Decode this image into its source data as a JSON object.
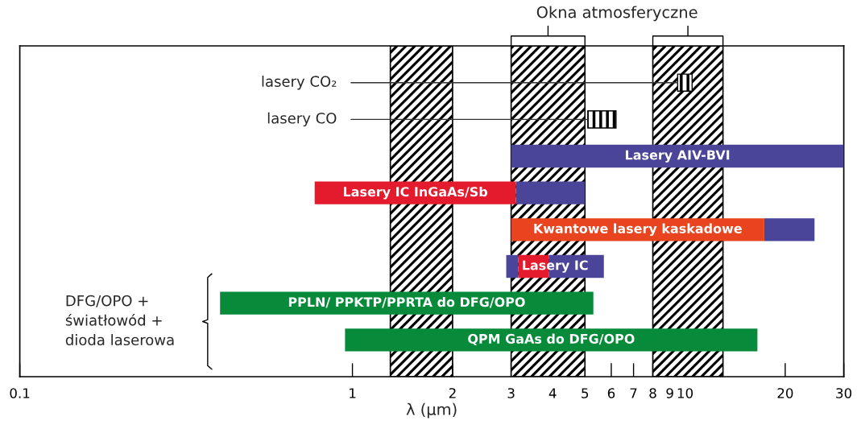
{
  "chart_data": {
    "type": "bar",
    "orientation": "horizontal",
    "xlabel": "λ (µm)",
    "log": "x",
    "grid": false,
    "legend": false,
    "categories": [
      null,
      null,
      null,
      null,
      null,
      null,
      null,
      null
    ],
    "xlim": [
      0.1,
      30
    ],
    "xticks": [
      0.1,
      1,
      2,
      3,
      4,
      5,
      6,
      7,
      8,
      9,
      10,
      20,
      30
    ],
    "series": [
      {
        "name": "lasery CO₂",
        "color": "#000000",
        "base": [
          9.5,
          null,
          null,
          null,
          null,
          null,
          null,
          null
        ],
        "values": [
          1.0,
          null,
          null,
          null,
          null,
          null,
          null,
          null
        ]
      },
      {
        "name": "lasery CO",
        "color": "#000000",
        "base": [
          null,
          5.1,
          null,
          null,
          null,
          null,
          null,
          null
        ],
        "values": [
          null,
          1.1,
          null,
          null,
          null,
          null,
          null,
          null
        ]
      },
      {
        "color": "#4a4598",
        "base": [
          null,
          null,
          3.0,
          3.1,
          17.3,
          2.9,
          null,
          null
        ],
        "values": [
          null,
          null,
          27.0,
          1.9,
          7.2,
          0.25,
          null,
          null
        ],
        "value_labels": [
          null,
          null,
          "Lasery AIV-BVI",
          null,
          null,
          null,
          null,
          null
        ]
      },
      {
        "color": "#e31b2d",
        "base": [
          null,
          null,
          null,
          0.77,
          null,
          3.15,
          null,
          null
        ],
        "values": [
          null,
          null,
          null,
          2.33,
          null,
          0.75,
          null,
          null
        ],
        "value_labels": [
          null,
          null,
          null,
          "Lasery IC InGaAs/Sb",
          null,
          "Lasery IC",
          null,
          null
        ]
      },
      {
        "color": "#4a4598",
        "base": [
          null,
          null,
          null,
          null,
          null,
          3.9,
          null,
          null
        ],
        "values": [
          null,
          null,
          null,
          null,
          null,
          1.8,
          null,
          null
        ]
      },
      {
        "color": "#e84420",
        "base": [
          null,
          null,
          null,
          null,
          3.0,
          null,
          null,
          null
        ],
        "values": [
          null,
          null,
          null,
          null,
          14.3,
          null,
          null,
          null
        ],
        "value_labels": [
          null,
          null,
          null,
          null,
          "Kwantowe lasery kaskadowe",
          null,
          null,
          null
        ]
      },
      {
        "color": "#078a3a",
        "base": [
          null,
          null,
          null,
          null,
          null,
          null,
          0.4,
          0.95
        ],
        "values": [
          null,
          null,
          null,
          null,
          null,
          null,
          4.9,
          15.55
        ],
        "value_labels": [
          null,
          null,
          null,
          null,
          null,
          null,
          "PPLN/ PPKTP/PPRTA do DFG/OPO",
          "QPM GaAs do DFG/OPO"
        ]
      }
    ],
    "bands": [
      {
        "axis": "x",
        "from": 1.3,
        "to": 2.0,
        "color": "#000000"
      },
      {
        "axis": "x",
        "from": 3.0,
        "to": 5.0,
        "color": "#000000"
      },
      {
        "axis": "x",
        "from": 8.0,
        "to": 13.0,
        "color": "#000000"
      }
    ],
    "annotations": [
      "Okna atmosferyczne",
      "DFG/OPO +\nświatłowód +\ndioda laserowa"
    ]
  }
}
